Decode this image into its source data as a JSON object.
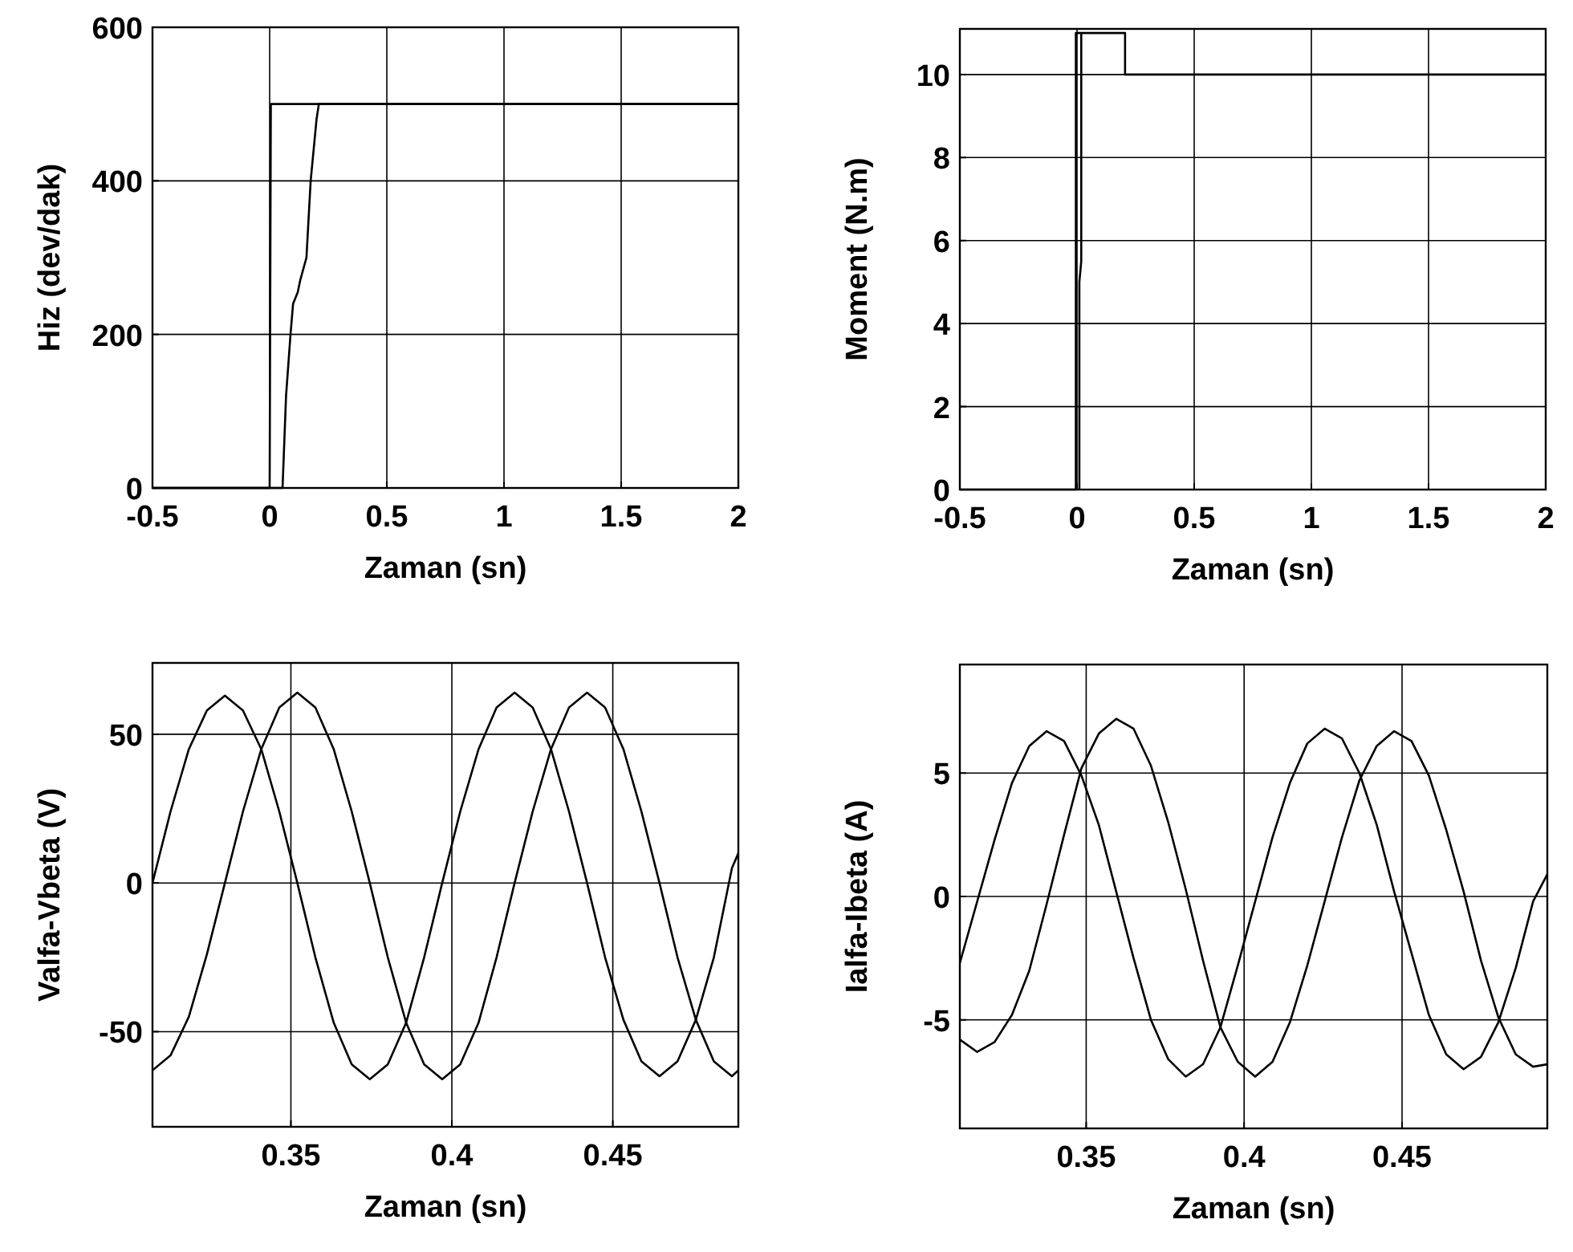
{
  "chart_data": [
    {
      "type": "line",
      "xlabel": "Zaman (sn)",
      "ylabel": "Hiz (dev/dak)",
      "xlim": [
        -0.5,
        2
      ],
      "ylim": [
        0,
        600
      ],
      "xticks": [
        -0.5,
        0,
        0.5,
        1,
        1.5,
        2
      ],
      "yticks": [
        0,
        200,
        400,
        600
      ],
      "grid": true,
      "series": [
        {
          "color": "#000000",
          "x": [
            -0.5,
            0,
            0.005,
            2
          ],
          "values": [
            0,
            0,
            500,
            500
          ]
        },
        {
          "color": "#000000",
          "x": [
            -0.5,
            0.055,
            0.07,
            0.089,
            0.1,
            0.12,
            0.13,
            0.157,
            0.175,
            0.2,
            0.21,
            2
          ],
          "values": [
            0,
            0,
            120,
            200,
            240,
            255,
            270,
            300,
            400,
            480,
            500,
            500
          ]
        }
      ]
    },
    {
      "type": "line",
      "xlabel": "Zaman (sn)",
      "ylabel": "Moment (N.m)",
      "xlim": [
        -0.5,
        2
      ],
      "ylim": [
        0,
        11.1
      ],
      "xticks": [
        -0.5,
        0,
        0.5,
        1,
        1.5,
        2
      ],
      "yticks": [
        0,
        2,
        4,
        6,
        8,
        10
      ],
      "grid": true,
      "series": [
        {
          "color": "#000000",
          "x": [
            -0.5,
            -0.005,
            -0.005,
            0.205,
            0.205,
            2
          ],
          "values": [
            0,
            0,
            11,
            11,
            10,
            10
          ]
        },
        {
          "color": "#000000",
          "x": [
            0.01,
            0.01,
            0.018,
            0.018
          ],
          "values": [
            0,
            5,
            5.5,
            11
          ]
        }
      ]
    },
    {
      "type": "line",
      "xlabel": "Zaman (sn)",
      "ylabel": "Valfa-Vbeta (V)",
      "xlim": [
        0.307,
        0.489
      ],
      "ylim": [
        -82,
        74
      ],
      "xticks": [
        0.35,
        0.4,
        0.45
      ],
      "yticks": [
        -50,
        0,
        50
      ],
      "grid": true,
      "series": [
        {
          "color": "#000000",
          "x": [
            0.307,
            0.3126,
            0.3183,
            0.3239,
            0.3295,
            0.3351,
            0.3408,
            0.3464,
            0.352,
            0.3576,
            0.3633,
            0.3689,
            0.3745,
            0.3801,
            0.3858,
            0.3914,
            0.397,
            0.4026,
            0.4083,
            0.4139,
            0.4195,
            0.4251,
            0.4308,
            0.4364,
            0.442,
            0.4476,
            0.4533,
            0.4589,
            0.4645,
            0.4701,
            0.4758,
            0.4814,
            0.487,
            0.489
          ],
          "values": [
            0,
            24,
            45,
            58,
            63,
            58,
            45,
            24,
            0,
            -25,
            -47,
            -61,
            -66,
            -61,
            -47,
            -25,
            0,
            24,
            45,
            59,
            64,
            59,
            45,
            24,
            0,
            -25,
            -46,
            -60,
            -65,
            -60,
            -46,
            -25,
            5,
            10
          ]
        },
        {
          "color": "#000000",
          "x": [
            0.307,
            0.3126,
            0.3183,
            0.3239,
            0.3295,
            0.3351,
            0.3408,
            0.3464,
            0.352,
            0.3576,
            0.3633,
            0.3689,
            0.3745,
            0.3801,
            0.3858,
            0.3914,
            0.397,
            0.4026,
            0.4083,
            0.4139,
            0.4195,
            0.4251,
            0.4308,
            0.4364,
            0.442,
            0.4476,
            0.4533,
            0.4589,
            0.4645,
            0.4701,
            0.4758,
            0.4814,
            0.487,
            0.489
          ],
          "values": [
            -63,
            -58,
            -45,
            -24,
            0,
            24,
            45,
            59,
            64,
            59,
            45,
            24,
            0,
            -25,
            -47,
            -61,
            -66,
            -61,
            -47,
            -25,
            0,
            24,
            45,
            59,
            64,
            59,
            45,
            24,
            0,
            -25,
            -46,
            -60,
            -65,
            -63
          ]
        }
      ]
    },
    {
      "type": "line",
      "xlabel": "Zaman (sn)",
      "ylabel": "Ialfa-Ibeta (A)",
      "xlim": [
        0.31,
        0.496
      ],
      "ylim": [
        -9.4,
        9.4
      ],
      "xticks": [
        0.35,
        0.4,
        0.45
      ],
      "yticks": [
        -5,
        0,
        5
      ],
      "grid": true,
      "series": [
        {
          "color": "#000000",
          "x": [
            0.31,
            0.3155,
            0.321,
            0.3265,
            0.332,
            0.3375,
            0.343,
            0.3485,
            0.354,
            0.3595,
            0.365,
            0.3705,
            0.376,
            0.3815,
            0.387,
            0.3925,
            0.398,
            0.4035,
            0.409,
            0.4145,
            0.42,
            0.4255,
            0.431,
            0.4365,
            0.442,
            0.4475,
            0.453,
            0.4585,
            0.464,
            0.4695,
            0.475,
            0.4805,
            0.486,
            0.4915,
            0.496
          ],
          "values": [
            -2.7,
            -0.2,
            2.3,
            4.6,
            6.1,
            6.7,
            6.3,
            4.9,
            2.9,
            0.2,
            -2.5,
            -5.0,
            -6.6,
            -7.3,
            -6.8,
            -5.3,
            -2.8,
            -0.2,
            2.4,
            4.6,
            6.2,
            6.8,
            6.4,
            5.0,
            2.9,
            0.2,
            -2.3,
            -4.8,
            -6.4,
            -7.0,
            -6.5,
            -5.1,
            -2.9,
            -0.2,
            0.9
          ]
        },
        {
          "color": "#000000",
          "x": [
            0.31,
            0.3155,
            0.321,
            0.3265,
            0.332,
            0.3375,
            0.343,
            0.3485,
            0.354,
            0.3595,
            0.365,
            0.3705,
            0.376,
            0.3815,
            0.387,
            0.3925,
            0.398,
            0.4035,
            0.409,
            0.4145,
            0.42,
            0.4255,
            0.431,
            0.4365,
            0.442,
            0.4475,
            0.453,
            0.4585,
            0.464,
            0.4695,
            0.475,
            0.4805,
            0.486,
            0.4915,
            0.496
          ],
          "values": [
            -5.8,
            -6.3,
            -5.9,
            -4.8,
            -3.0,
            -0.3,
            2.5,
            5.2,
            6.6,
            7.2,
            6.8,
            5.3,
            3.0,
            0.3,
            -2.6,
            -5.3,
            -6.7,
            -7.3,
            -6.7,
            -5.1,
            -2.8,
            -0.2,
            2.4,
            4.7,
            6.1,
            6.7,
            6.3,
            4.9,
            2.7,
            0.2,
            -2.6,
            -4.9,
            -6.4,
            -6.9,
            -6.8
          ]
        }
      ]
    }
  ]
}
